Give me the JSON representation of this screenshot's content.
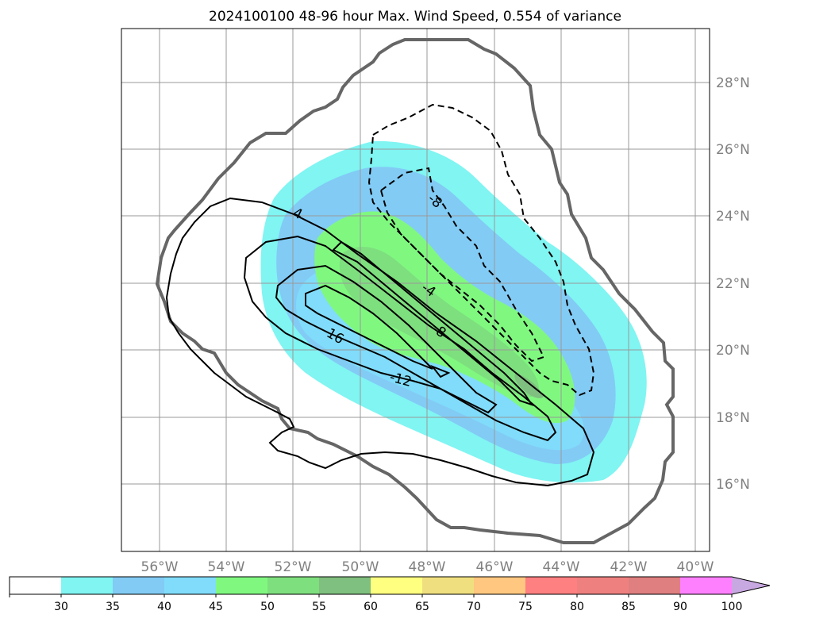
{
  "chart_data": {
    "type": "map",
    "title": "2024100100 48-96 hour Max. Wind Speed, 0.554 of variance",
    "lon_ticks": [
      "56°W",
      "54°W",
      "52°W",
      "50°W",
      "48°W",
      "46°W",
      "44°W",
      "42°W",
      "40°W"
    ],
    "lat_ticks": [
      "28°N",
      "26°N",
      "24°N",
      "22°N",
      "20°N",
      "18°N",
      "16°N"
    ],
    "grid": true,
    "colorbar": {
      "levels": [
        "30",
        "35",
        "40",
        "45",
        "50",
        "55",
        "60",
        "65",
        "70",
        "75",
        "80",
        "85",
        "90",
        "100"
      ],
      "colors": [
        "#ffffff",
        "#80f5f2",
        "#82cbf5",
        "#80dcfa",
        "#80f880",
        "#7edf7e",
        "#7fbf7f",
        "#ffff80",
        "#efdf7f",
        "#ffc77f",
        "#ff8080",
        "#ef8080",
        "#df7f7f",
        "#ff80ff",
        "#c8a8e0"
      ],
      "extend": "max"
    },
    "contour_labels": [
      "4",
      "8",
      "-8",
      "-4",
      "-16",
      "-12"
    ],
    "outline_color": "#666666"
  }
}
